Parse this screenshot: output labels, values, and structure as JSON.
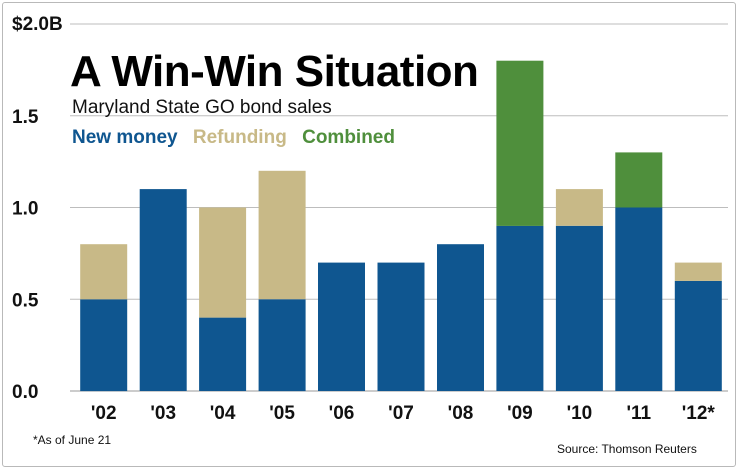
{
  "chart_data": {
    "type": "bar",
    "stacked": true,
    "title": "A Win-Win Situation",
    "subtitle": "Maryland State GO bond sales",
    "y_top_label": "$2.0B",
    "ylim": [
      0,
      2.0
    ],
    "yticks": [
      "0.0",
      "0.5",
      "1.0",
      "1.5"
    ],
    "categories": [
      "'02",
      "'03",
      "'04",
      "'05",
      "'06",
      "'07",
      "'08",
      "'09",
      "'10",
      "'11",
      "'12*"
    ],
    "series": [
      {
        "name": "New money",
        "color": "#0f5690",
        "values": [
          0.5,
          1.1,
          0.4,
          0.5,
          0.7,
          0.7,
          0.8,
          0.9,
          0.9,
          1.0,
          0.6
        ]
      },
      {
        "name": "Refunding",
        "color": "#c8b987",
        "values": [
          0.3,
          0.0,
          0.6,
          0.7,
          0.0,
          0.0,
          0.0,
          0.0,
          0.2,
          0.0,
          0.1
        ]
      },
      {
        "name": "Combined",
        "color": "#4f8f3c",
        "values": [
          0.0,
          0.0,
          0.0,
          0.0,
          0.0,
          0.0,
          0.0,
          0.9,
          0.0,
          0.3,
          0.0
        ]
      }
    ],
    "grid": true,
    "footnote": "*As of June 21",
    "source": "Source: Thomson Reuters"
  }
}
